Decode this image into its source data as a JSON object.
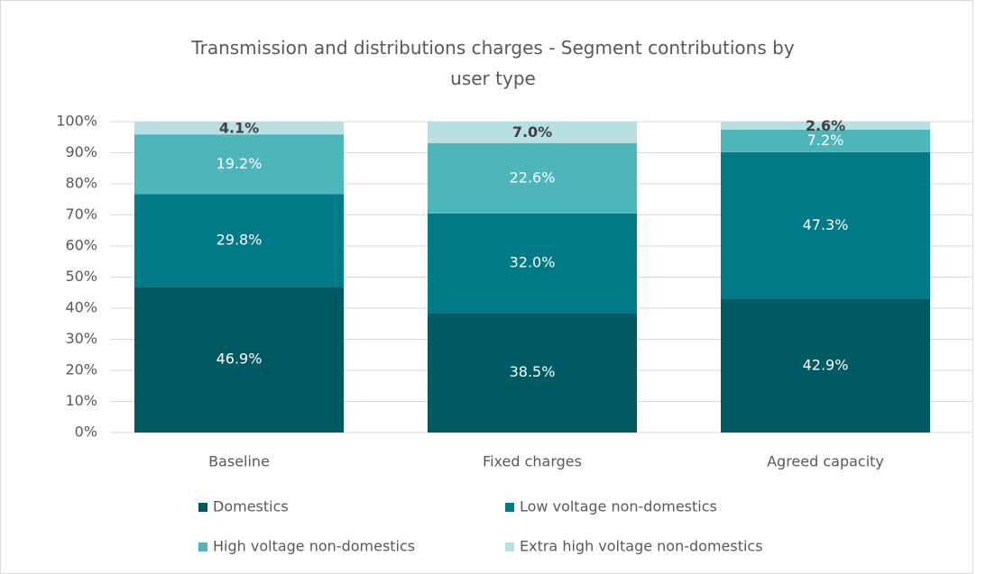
{
  "chart_data": {
    "type": "stacked_bar",
    "title": "Transmission and distributions charges - Segment contributions by user type",
    "categories": [
      "Baseline",
      "Fixed charges",
      "Agreed capacity"
    ],
    "series": [
      {
        "name": "Domestics",
        "color": "#005a64",
        "values": [
          46.9,
          38.5,
          42.9
        ],
        "value_labels": [
          "46.9%",
          "38.5%",
          "42.9%"
        ]
      },
      {
        "name": "Low voltage non-domestics",
        "color": "#007a87",
        "values": [
          29.8,
          32.0,
          47.3
        ],
        "value_labels": [
          "29.8%",
          "32.0%",
          "47.3%"
        ]
      },
      {
        "name": "High voltage non-domestics",
        "color": "#4db6bb",
        "values": [
          19.2,
          22.6,
          7.2
        ],
        "value_labels": [
          "19.2%",
          "22.6%",
          "7.2%"
        ]
      },
      {
        "name": "Extra high voltage non-domestics",
        "color": "#b8e0e2",
        "values": [
          4.1,
          7.0,
          2.6
        ],
        "value_labels": [
          "4.1%",
          "7.0%",
          "2.6%"
        ]
      }
    ],
    "ylim": [
      0,
      100
    ],
    "yticks": [
      {
        "value": 0,
        "label": "0%"
      },
      {
        "value": 10,
        "label": "10%"
      },
      {
        "value": 20,
        "label": "20%"
      },
      {
        "value": 30,
        "label": "30%"
      },
      {
        "value": 40,
        "label": "40%"
      },
      {
        "value": 50,
        "label": "50%"
      },
      {
        "value": 60,
        "label": "60%"
      },
      {
        "value": 70,
        "label": "70%"
      },
      {
        "value": 80,
        "label": "80%"
      },
      {
        "value": 90,
        "label": "90%"
      },
      {
        "value": 100,
        "label": "100%"
      }
    ],
    "grid": true,
    "legend": "bottom"
  }
}
